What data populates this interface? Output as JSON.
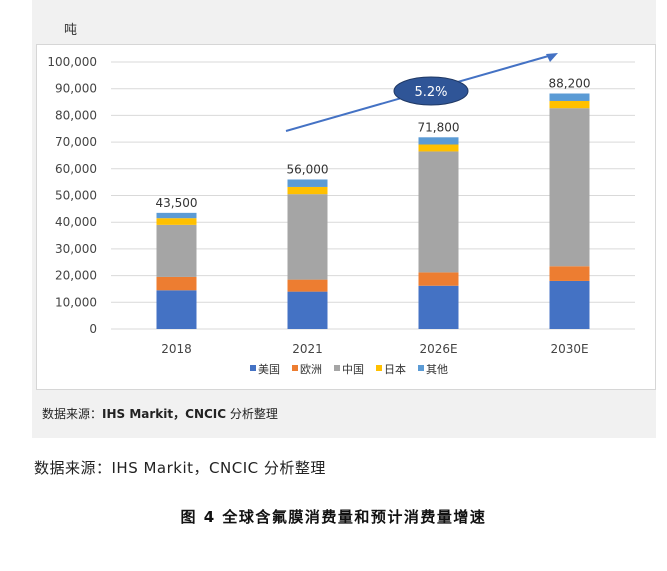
{
  "unit_label": "吨",
  "panel_source": {
    "prefix": "数据来源：",
    "bold": "IHS Markit，CNCIC",
    "suffix": " 分析整理"
  },
  "page_source": "数据来源：IHS Markit，CNCIC 分析整理",
  "caption": "图 4  全球含氟膜消费量和预计消费量增速",
  "chart_data": {
    "type": "bar",
    "stacked": true,
    "title": "",
    "xlabel": "",
    "ylabel": "吨",
    "categories": [
      "2018",
      "2021",
      "2026E",
      "2030E"
    ],
    "totals": [
      43500,
      56000,
      71800,
      88200
    ],
    "total_labels": [
      "43,500",
      "56,000",
      "71,800",
      "88,200"
    ],
    "series": [
      {
        "name": "美国",
        "color": "#4472c4",
        "values": [
          14500,
          14000,
          16200,
          18000
        ]
      },
      {
        "name": "欧洲",
        "color": "#ed7d31",
        "values": [
          5000,
          4500,
          5000,
          5500
        ]
      },
      {
        "name": "中国",
        "color": "#a5a5a5",
        "values": [
          19500,
          32000,
          45300,
          59200
        ]
      },
      {
        "name": "日本",
        "color": "#ffc000",
        "values": [
          2500,
          2700,
          2600,
          2700
        ]
      },
      {
        "name": "其他",
        "color": "#5b9bd5",
        "values": [
          2000,
          2800,
          2700,
          2800
        ]
      }
    ],
    "ylim": [
      0,
      100000
    ],
    "yticks": [
      0,
      10000,
      20000,
      30000,
      40000,
      50000,
      60000,
      70000,
      80000,
      90000,
      100000
    ],
    "ytick_labels": [
      "0",
      "10,000",
      "20,000",
      "30,000",
      "40,000",
      "50,000",
      "60,000",
      "70,000",
      "80,000",
      "90,000",
      "100,000"
    ],
    "grid": true,
    "legend_position": "bottom",
    "annotation": {
      "text": "5.2%",
      "fill": "#2f5597",
      "text_color": "#ffffff",
      "arrow_color": "#4472c4"
    }
  }
}
